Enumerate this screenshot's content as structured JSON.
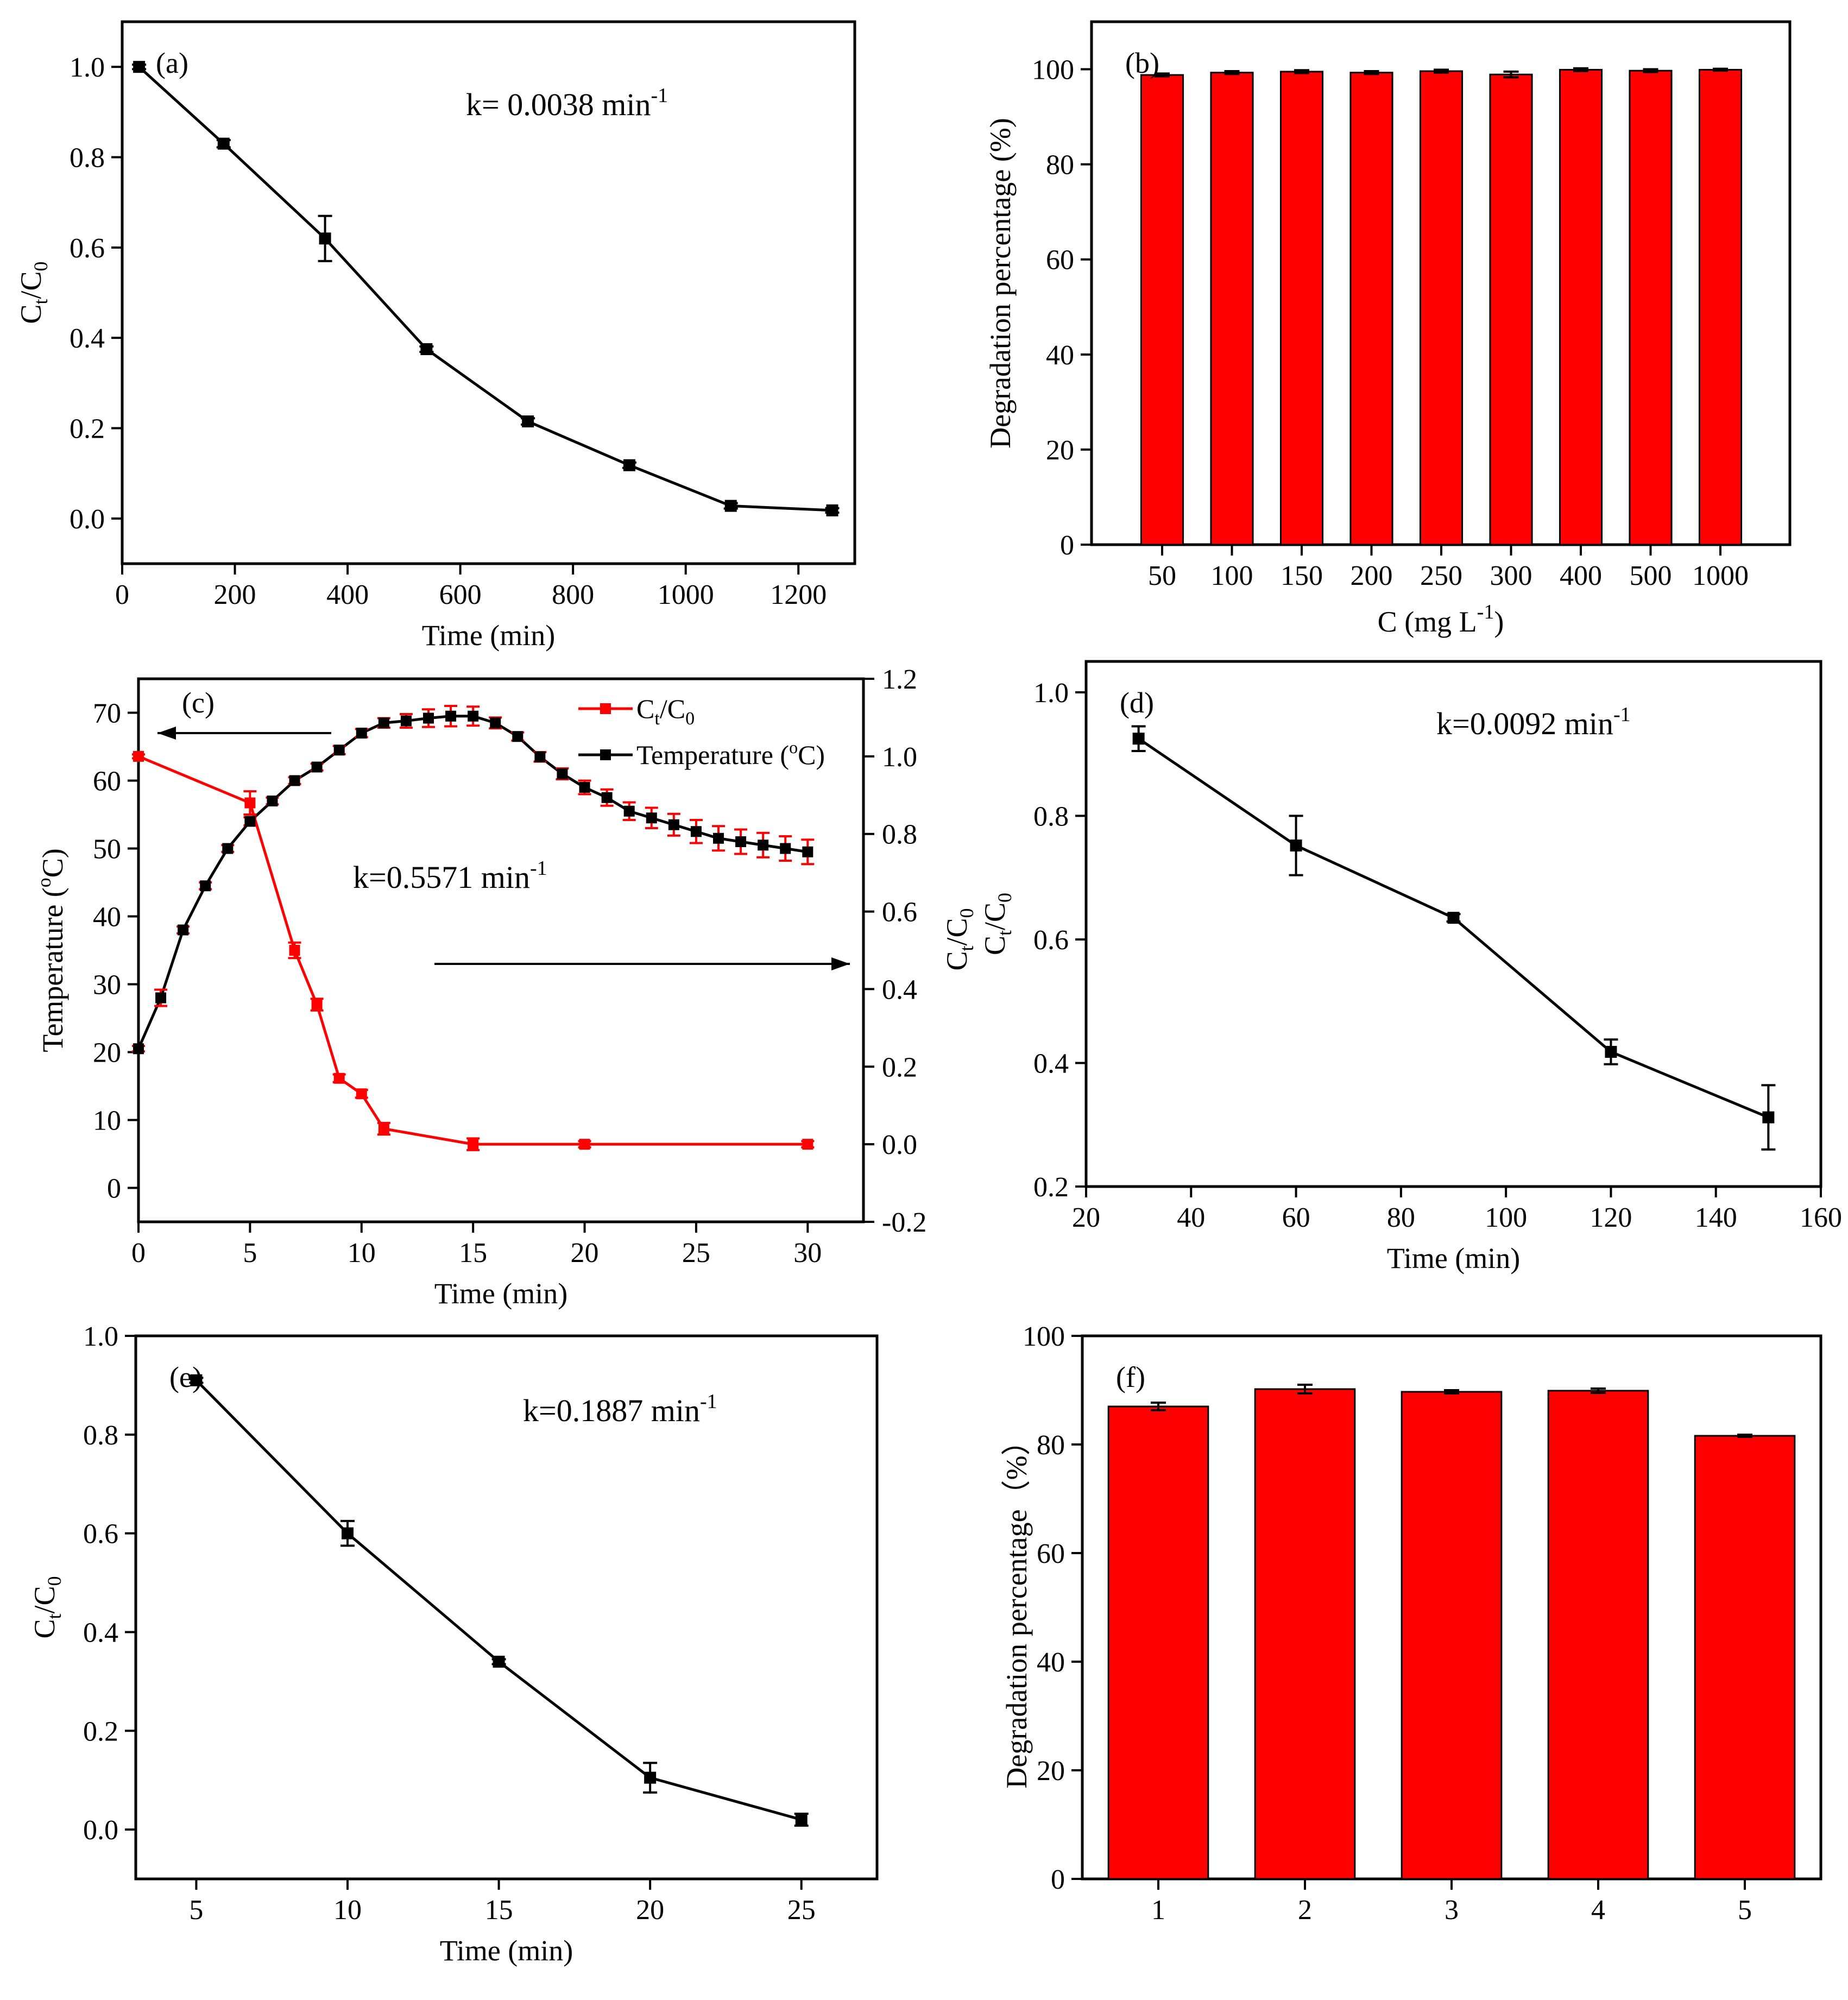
{
  "chart_data": [
    {
      "id": "a",
      "type": "line",
      "panel_label": "(a)",
      "annotation": "k= 0.0038 min",
      "annotation_sup": "-1",
      "xlabel": "Time (min)",
      "ylabel_main": "C",
      "ylabel_sub1": "t",
      "ylabel_mid": "/C",
      "ylabel_sub2": "0",
      "xlim": [
        0,
        1300
      ],
      "ylim": [
        -0.1,
        1.1
      ],
      "xticks": [
        0,
        200,
        400,
        600,
        800,
        1000,
        1200
      ],
      "xtick_labels": [
        "0",
        "200",
        "400",
        "600",
        "800",
        "1000",
        "1200"
      ],
      "yticks": [
        0.0,
        0.2,
        0.4,
        0.6,
        0.8,
        1.0
      ],
      "ytick_labels": [
        "0.0",
        "0.2",
        "0.4",
        "0.6",
        "0.8",
        "1.0"
      ],
      "series": [
        {
          "name": "Ct/C0",
          "color": "#000000",
          "x": [
            30,
            180,
            360,
            540,
            720,
            900,
            1080,
            1260
          ],
          "y": [
            1.0,
            0.83,
            0.62,
            0.375,
            0.215,
            0.118,
            0.028,
            0.018
          ],
          "err": [
            0.005,
            0.008,
            0.05,
            0.006,
            0.007,
            0.006,
            0.006,
            0.005
          ]
        }
      ]
    },
    {
      "id": "b",
      "type": "bar",
      "panel_label": "(b)",
      "xlabel": "C (mg L",
      "xlabel_sup": "-1",
      "xlabel_end": ")",
      "ylabel": "Degradation percentage (%)",
      "ylim": [
        0,
        110
      ],
      "yticks": [
        0,
        20,
        40,
        60,
        80,
        100
      ],
      "ytick_labels": [
        "0",
        "20",
        "40",
        "60",
        "80",
        "100"
      ],
      "categories": [
        "50",
        "100",
        "150",
        "200",
        "250",
        "300",
        "400",
        "500",
        "1000"
      ],
      "values": [
        98.8,
        99.3,
        99.5,
        99.3,
        99.6,
        98.9,
        99.9,
        99.7,
        99.9
      ],
      "err": [
        0.3,
        0.3,
        0.3,
        0.3,
        0.3,
        0.6,
        0.3,
        0.3,
        0.2
      ],
      "color": "#ff0000"
    },
    {
      "id": "c",
      "type": "line",
      "panel_label": "(c)",
      "annotation": "k=0.5571 min",
      "annotation_sup": "-1",
      "xlabel": "Time (min)",
      "ylabel": "Temperature (",
      "ylabel_sup": "o",
      "ylabel_end": "C)",
      "xlim": [
        0,
        32.5
      ],
      "ylim_left": [
        -5,
        75
      ],
      "ylim_right": [
        -0.2,
        1.2
      ],
      "xticks": [
        0,
        5,
        10,
        15,
        20,
        25,
        30
      ],
      "xtick_labels": [
        "0",
        "5",
        "10",
        "15",
        "20",
        "25",
        "30"
      ],
      "yticks_left": [
        0,
        10,
        20,
        30,
        40,
        50,
        60,
        70
      ],
      "ytick_labels_left": [
        "0",
        "10",
        "20",
        "30",
        "40",
        "50",
        "60",
        "70"
      ],
      "yticks_right": [
        -0.2,
        0.0,
        0.2,
        0.4,
        0.6,
        0.8,
        1.0,
        1.2
      ],
      "ytick_labels_right": [
        "-0.2",
        "0.0",
        "0.2",
        "0.4",
        "0.6",
        "0.8",
        "1.0",
        "1.2"
      ],
      "legend": {
        "ct_main": "C",
        "ct_sub1": "t",
        "ct_mid": "/C",
        "ct_sub2": "0",
        "temp_main": "Temperature (",
        "temp_sup": "o",
        "temp_end": "C)"
      },
      "series": [
        {
          "name": "Ct/C0",
          "axis": "right",
          "color": "#ff0000",
          "x": [
            0,
            5,
            7,
            8,
            9,
            10,
            11,
            15,
            20,
            30
          ],
          "y": [
            1.0,
            0.88,
            0.5,
            0.36,
            0.17,
            0.13,
            0.04,
            0.0,
            0.0,
            0.0
          ],
          "err": [
            0.005,
            0.03,
            0.02,
            0.015,
            0.01,
            0.01,
            0.015,
            0.015,
            0.008,
            0.008
          ]
        },
        {
          "name": "Temperature (oC)",
          "axis": "left",
          "color": "#000000",
          "x": [
            0,
            1,
            2,
            3,
            4,
            5,
            6,
            7,
            8,
            9,
            10,
            11,
            12,
            13,
            14,
            15,
            16,
            17,
            18,
            19,
            20,
            21,
            22,
            23,
            24,
            25,
            26,
            27,
            28,
            29,
            30
          ],
          "y": [
            20.5,
            28,
            38,
            44.5,
            50,
            54,
            57,
            60,
            62,
            64.5,
            67,
            68.5,
            68.8,
            69.2,
            69.5,
            69.5,
            68.5,
            66.5,
            63.5,
            61,
            59,
            57.5,
            55.5,
            54.5,
            53.5,
            52.5,
            51.5,
            51,
            50.5,
            50,
            49.5
          ],
          "err": [
            0.4,
            1.2,
            0.5,
            0.5,
            0.5,
            0.6,
            0.5,
            0.5,
            0.5,
            0.6,
            0.6,
            0.7,
            1.0,
            1.3,
            1.5,
            1.4,
            0.8,
            0.6,
            0.7,
            0.8,
            1.0,
            1.2,
            1.3,
            1.5,
            1.6,
            1.7,
            1.8,
            1.8,
            1.8,
            1.8,
            1.8
          ]
        }
      ]
    },
    {
      "id": "d",
      "type": "line",
      "panel_label": "(d)",
      "annotation": "k=0.0092 min",
      "annotation_sup": "-1",
      "xlabel": "Time (min)",
      "ylabel_main": "C",
      "ylabel_sub1": "t",
      "ylabel_mid": "/C",
      "ylabel_sub2": "0",
      "xlim": [
        20,
        160
      ],
      "ylim": [
        0.2,
        1.05
      ],
      "xticks": [
        20,
        40,
        60,
        80,
        100,
        120,
        140,
        160
      ],
      "xtick_labels": [
        "20",
        "40",
        "60",
        "80",
        "100",
        "120",
        "140",
        "160"
      ],
      "yticks": [
        0.2,
        0.4,
        0.6,
        0.8,
        1.0
      ],
      "ytick_labels": [
        "0.2",
        "0.4",
        "0.6",
        "0.8",
        "1.0"
      ],
      "series": [
        {
          "name": "Ct/C0",
          "color": "#000000",
          "x": [
            30,
            60,
            90,
            120,
            150
          ],
          "y": [
            0.925,
            0.752,
            0.635,
            0.418,
            0.312
          ],
          "err": [
            0.02,
            0.048,
            0.006,
            0.02,
            0.052
          ]
        }
      ]
    },
    {
      "id": "e",
      "type": "line",
      "panel_label": "(e)",
      "annotation": "k=0.1887 min",
      "annotation_sup": "-1",
      "xlabel": "Time (min)",
      "ylabel_main": "C",
      "ylabel_sub1": "t",
      "ylabel_mid": "/C",
      "ylabel_sub2": "0",
      "xlim": [
        3,
        27.5
      ],
      "ylim": [
        -0.1,
        1.0
      ],
      "xticks": [
        5,
        10,
        15,
        20,
        25
      ],
      "xtick_labels": [
        "5",
        "10",
        "15",
        "20",
        "25"
      ],
      "yticks": [
        0.0,
        0.2,
        0.4,
        0.6,
        0.8,
        1.0
      ],
      "ytick_labels": [
        "0.0",
        "0.2",
        "0.4",
        "0.6",
        "0.8",
        "1.0"
      ],
      "series": [
        {
          "name": "Ct/C0",
          "color": "#000000",
          "x": [
            5,
            10,
            15,
            20,
            25
          ],
          "y": [
            0.91,
            0.6,
            0.34,
            0.105,
            0.02
          ],
          "err": [
            0.005,
            0.025,
            0.005,
            0.03,
            0.012
          ]
        }
      ]
    },
    {
      "id": "f",
      "type": "bar",
      "panel_label": "(f)",
      "xlabel": "",
      "ylabel": "Degradation percentage（%）",
      "ylim": [
        0,
        100
      ],
      "yticks": [
        0,
        20,
        40,
        60,
        80,
        100
      ],
      "ytick_labels": [
        "0",
        "20",
        "40",
        "60",
        "80",
        "100"
      ],
      "categories": [
        "1",
        "2",
        "3",
        "4",
        "5"
      ],
      "values": [
        87,
        90.2,
        89.7,
        89.9,
        81.6
      ],
      "err": [
        0.7,
        0.8,
        0.3,
        0.4,
        0.2
      ],
      "color": "#ff0000"
    }
  ]
}
